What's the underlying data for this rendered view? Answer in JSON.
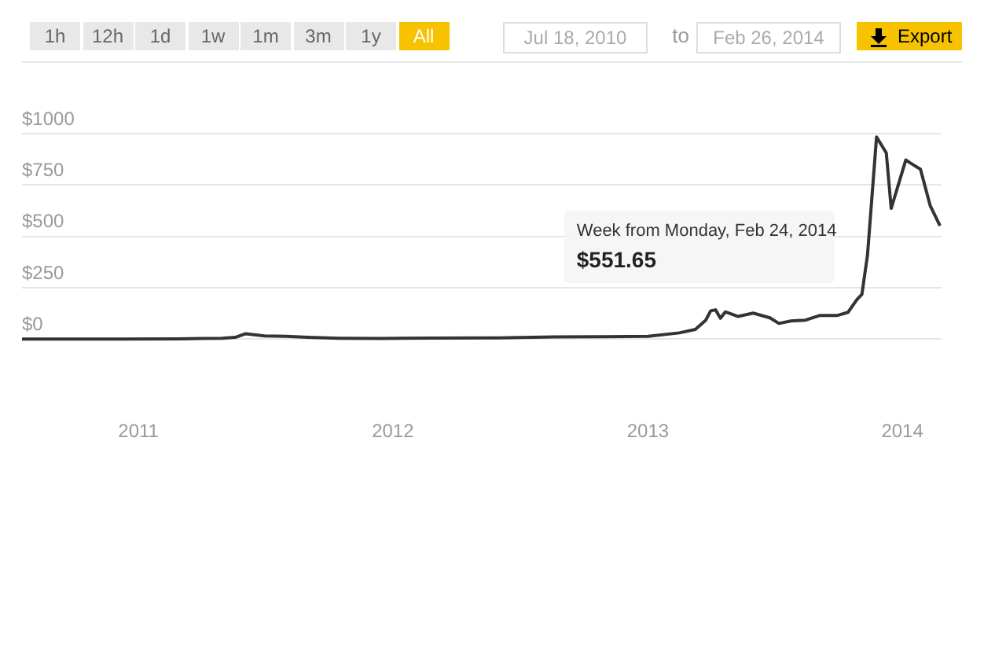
{
  "chart_data": {
    "type": "line",
    "x": [
      "2010-07-18",
      "2010-12-01",
      "2011-03-01",
      "2011-05-01",
      "2011-05-20",
      "2011-06-04",
      "2011-07-01",
      "2011-08-01",
      "2011-09-01",
      "2011-10-15",
      "2011-12-15",
      "2012-03-01",
      "2012-06-01",
      "2012-08-20",
      "2012-11-01",
      "2013-01-01",
      "2013-02-15",
      "2013-03-10",
      "2013-03-25",
      "2013-04-01",
      "2013-04-08",
      "2013-04-15",
      "2013-04-22",
      "2013-05-10",
      "2013-06-01",
      "2013-06-25",
      "2013-07-08",
      "2013-07-25",
      "2013-08-15",
      "2013-09-05",
      "2013-09-30",
      "2013-10-15",
      "2013-10-28",
      "2013-11-04",
      "2013-11-12",
      "2013-11-25",
      "2013-12-09",
      "2013-12-16",
      "2014-01-06",
      "2014-01-13",
      "2014-01-27",
      "2014-02-10",
      "2014-02-24"
    ],
    "series": [
      {
        "color": "#333333",
        "values": [
          0,
          0,
          1,
          4,
          8,
          26,
          15,
          13,
          8,
          4,
          3,
          5,
          6,
          10,
          11,
          13,
          30,
          47,
          92,
          137,
          142,
          101,
          132,
          110,
          126,
          103,
          76,
          88,
          92,
          115,
          115,
          130,
          193,
          218,
          409,
          984,
          906,
          636,
          872,
          856,
          827,
          649,
          551.65
        ]
      }
    ],
    "xlim": [
      "2010-07-18",
      "2014-02-26"
    ],
    "xticks": [
      {
        "value": "2011-01-01",
        "label": "2011"
      },
      {
        "value": "2012-01-01",
        "label": "2012"
      },
      {
        "value": "2013-01-01",
        "label": "2013"
      },
      {
        "value": "2014-01-01",
        "label": "2014"
      }
    ],
    "ylim": [
      0,
      1000
    ],
    "yticks": [
      {
        "value": 0,
        "label": "$0"
      },
      {
        "value": 250,
        "label": "$250"
      },
      {
        "value": 500,
        "label": "$500"
      },
      {
        "value": 750,
        "label": "$750"
      },
      {
        "value": 1000,
        "label": "$1000"
      }
    ],
    "grid": "y",
    "legend": false,
    "marker": "none",
    "line_style": "solid",
    "annotations": [
      "1h",
      "12h",
      "1d",
      "1w",
      "1m",
      "3m",
      "1y",
      "All",
      "Jul 18, 2010",
      "to",
      "Feb 26, 2014",
      "Export",
      "Week from Monday, Feb 24, 2014",
      "$551.65"
    ]
  }
}
